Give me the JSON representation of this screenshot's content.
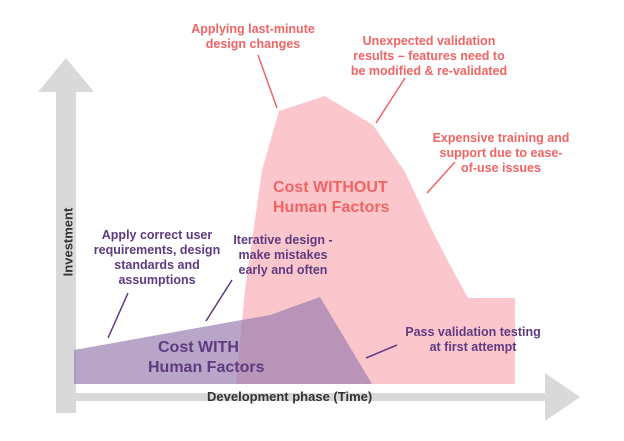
{
  "colors": {
    "axis": "#d9d9d9",
    "without_fill": "#f9b4bc",
    "with_fill": "#9b7fb0",
    "red_text": "#f06464",
    "purple_text": "#5e3b80"
  },
  "axes": {
    "x_label": "Development phase (Time)",
    "y_label": "Investment"
  },
  "areas": {
    "without": [
      "Cost WITHOUT",
      "Human Factors"
    ],
    "with": [
      "Cost WITH",
      "Human Factors"
    ]
  },
  "annotations": {
    "design_changes": [
      "Applying last-minute",
      "design changes"
    ],
    "validation_results": [
      "Unexpected validation",
      "results – features need to",
      "be modified & re-validated"
    ],
    "training": [
      "Expensive training and",
      "support due to ease-",
      "of-use issues"
    ],
    "user_requirements": [
      "Apply correct user",
      "requirements, design",
      "standards and",
      "assumptions"
    ],
    "iterative_design": [
      "Iterative design -",
      "make mistakes",
      "early and often"
    ],
    "pass_validation": [
      "Pass validation testing",
      "at first attempt"
    ]
  }
}
